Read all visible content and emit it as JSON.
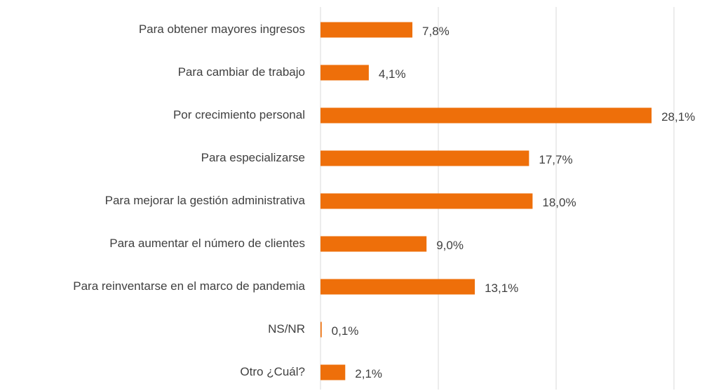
{
  "chart_data": {
    "type": "bar",
    "orientation": "horizontal",
    "categories": [
      "Para obtener mayores ingresos",
      "Para cambiar de trabajo",
      "Por crecimiento personal",
      "Para especializarse",
      "Para mejorar la gestión administrativa",
      "Para aumentar el número de clientes",
      "Para reinventarse en el marco de pandemia",
      "NS/NR",
      "Otro ¿Cuál?"
    ],
    "values": [
      7.8,
      4.1,
      28.1,
      17.7,
      18.0,
      9.0,
      13.1,
      0.1,
      2.1
    ],
    "value_labels": [
      "7,8%",
      "4,1%",
      "28,1%",
      "17,7%",
      "18,0%",
      "9,0%",
      "13,1%",
      "0,1%",
      "2,1%"
    ],
    "color": "#ee6f0a",
    "xlim": [
      0,
      30
    ],
    "xticks": [
      0,
      10,
      20,
      30
    ],
    "grid": true
  }
}
